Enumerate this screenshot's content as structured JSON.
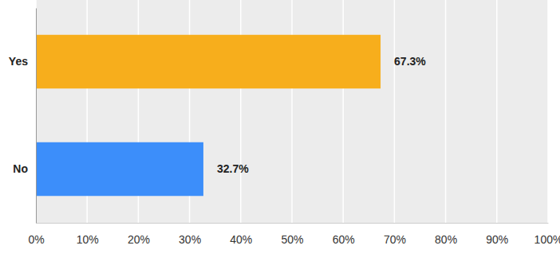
{
  "chart_data": {
    "type": "bar",
    "orientation": "horizontal",
    "categories": [
      "Yes",
      "No"
    ],
    "values": [
      67.3,
      32.7
    ],
    "value_labels": [
      "67.3%",
      "32.7%"
    ],
    "colors": [
      "#f7ae1c",
      "#3c8efa"
    ],
    "xlim": [
      0,
      100
    ],
    "xticks": [
      {
        "value": 0,
        "label": "0%"
      },
      {
        "value": 10,
        "label": "10%"
      },
      {
        "value": 20,
        "label": "20%"
      },
      {
        "value": 30,
        "label": "30%"
      },
      {
        "value": 40,
        "label": "40%"
      },
      {
        "value": 50,
        "label": "50%"
      },
      {
        "value": 60,
        "label": "60%"
      },
      {
        "value": 70,
        "label": "70%"
      },
      {
        "value": 80,
        "label": "80%"
      },
      {
        "value": 90,
        "label": "90%"
      },
      {
        "value": 100,
        "label": "100%"
      }
    ],
    "grid": true,
    "data_labels": true
  }
}
